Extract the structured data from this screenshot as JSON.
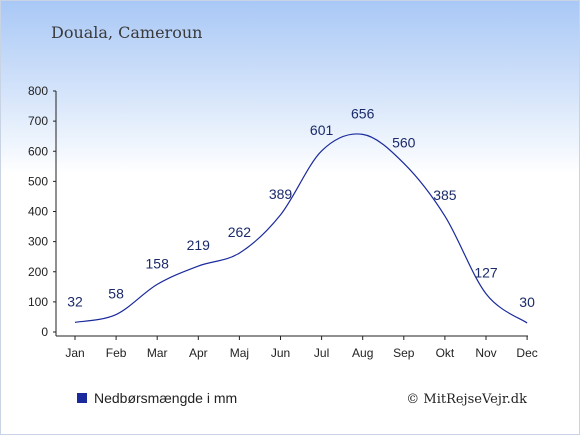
{
  "chart_data": {
    "type": "line",
    "title": "Douala, Cameroun",
    "categories": [
      "Jan",
      "Feb",
      "Mar",
      "Apr",
      "Maj",
      "Jun",
      "Jul",
      "Aug",
      "Sep",
      "Okt",
      "Nov",
      "Dec"
    ],
    "series": [
      {
        "name": "Nedbørsmængde i mm",
        "values": [
          32,
          58,
          158,
          219,
          262,
          389,
          601,
          656,
          560,
          385,
          127,
          30
        ]
      }
    ],
    "ylim": [
      0,
      800
    ],
    "yticks": [
      "0",
      "100",
      "200",
      "300",
      "400",
      "500",
      "600",
      "700",
      "800"
    ],
    "xlabel": "",
    "ylabel": "",
    "line_color": "#1a2a9c",
    "legend_position": "bottom-left",
    "grid": false
  },
  "credit": "© MitRejseVejr.dk"
}
